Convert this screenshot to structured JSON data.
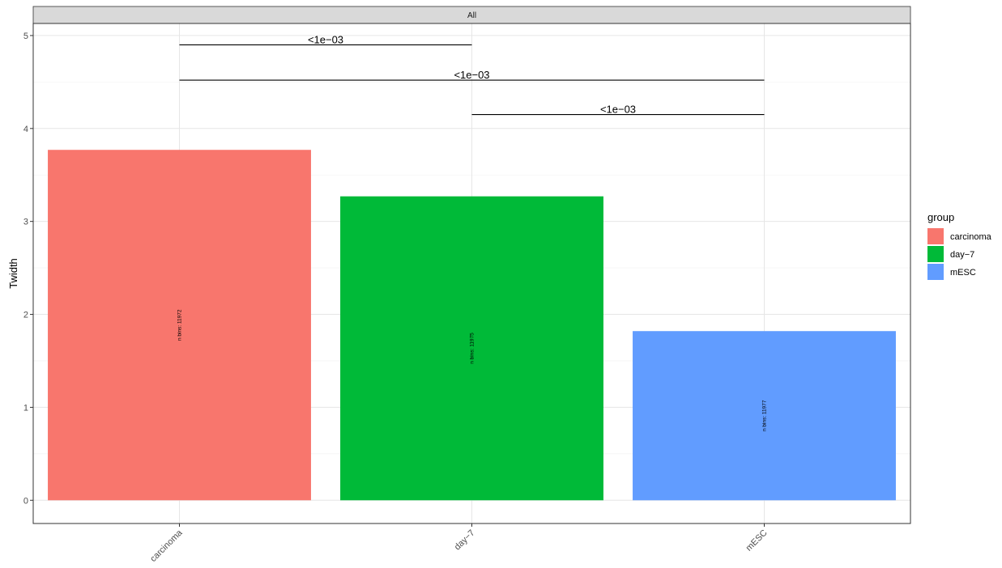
{
  "chart_data": {
    "type": "bar",
    "facet_label": "All",
    "categories": [
      "carcinoma",
      "day−7",
      "mESC"
    ],
    "values": [
      3.77,
      3.27,
      1.82
    ],
    "bar_labels": [
      "n bins: 11972",
      "n bins: 11975",
      "n bins: 11977"
    ],
    "colors": [
      "#F8766D",
      "#00BA38",
      "#619CFF"
    ],
    "xlabel": "",
    "ylabel": "Twidth",
    "ylim": [
      -0.25,
      5.13
    ],
    "yticks": [
      "0",
      "1",
      "2",
      "3",
      "4",
      "5"
    ],
    "grid": true,
    "comparisons": [
      {
        "from": 0,
        "to": 1,
        "y": 4.9,
        "label": "<1e−03"
      },
      {
        "from": 0,
        "to": 2,
        "y": 4.52,
        "label": "<1e−03"
      },
      {
        "from": 1,
        "to": 2,
        "y": 4.15,
        "label": "<1e−03"
      }
    ],
    "legend": {
      "title": "group",
      "position": "right",
      "items": [
        {
          "label": "carcinoma",
          "color": "#F8766D"
        },
        {
          "label": "day−7",
          "color": "#00BA38"
        },
        {
          "label": "mESC",
          "color": "#619CFF"
        }
      ]
    }
  }
}
